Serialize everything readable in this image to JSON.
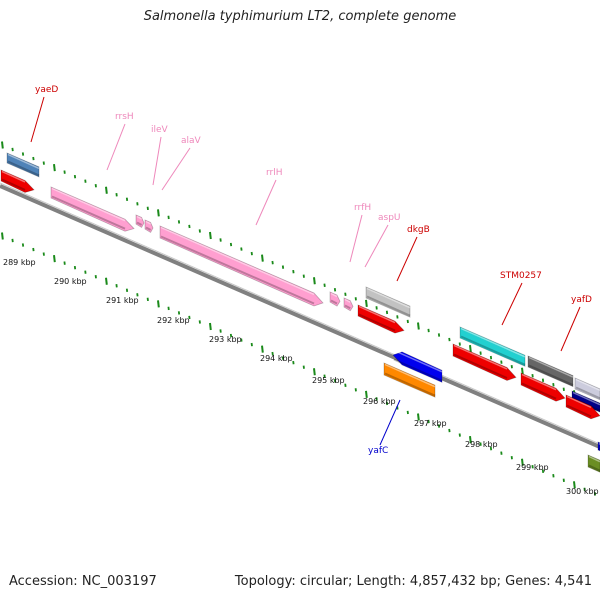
{
  "title": "Salmonella typhimurium LT2, complete genome",
  "footer": {
    "accession": "Accession: NC_003197",
    "stats": "Topology: circular; Length: 4,857,432 bp; Genes: 4,541"
  },
  "colors": {
    "backbone": "#808080",
    "tick": "#1a8a1a",
    "pink_feature": "#ff9fd0",
    "pink_label": "#ee88bb",
    "red_label": "#cc0000",
    "blue_label": "#0000cc"
  },
  "kbp_labels": [
    "289 kbp",
    "290 kbp",
    "291 kbp",
    "292 kbp",
    "293 kbp",
    "294 kbp",
    "295 kbp",
    "296 kbp",
    "297 kbp",
    "298 kbp",
    "299 kbp",
    "300 kbp"
  ],
  "gene_labels": [
    {
      "name": "yaeD",
      "color": "red"
    },
    {
      "name": "rrsH",
      "color": "pink"
    },
    {
      "name": "ileV",
      "color": "pink"
    },
    {
      "name": "alaV",
      "color": "pink"
    },
    {
      "name": "rrlH",
      "color": "pink"
    },
    {
      "name": "rrfH",
      "color": "pink"
    },
    {
      "name": "aspU",
      "color": "pink"
    },
    {
      "name": "dkgB",
      "color": "red"
    },
    {
      "name": "STM0257",
      "color": "red"
    },
    {
      "name": "yafD",
      "color": "red"
    },
    {
      "name": "yafC",
      "color": "blue"
    }
  ]
}
